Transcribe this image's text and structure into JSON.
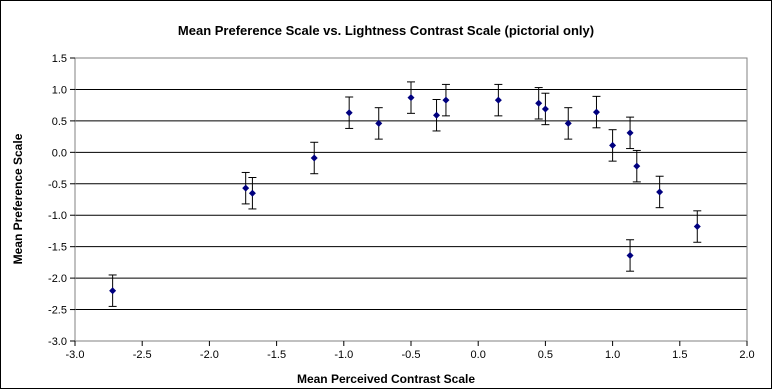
{
  "chart_data": {
    "type": "scatter",
    "title": "Mean Preference Scale vs. Lightness Contrast Scale (pictorial only)",
    "xlabel": "Mean Perceived Contrast Scale",
    "ylabel": "Mean Preference Scale",
    "xlim": [
      -3.0,
      2.0
    ],
    "ylim": [
      -3.0,
      1.5
    ],
    "x_ticks": [
      "-3.0",
      "-2.5",
      "-2.0",
      "-1.5",
      "-1.0",
      "-0.5",
      "0.0",
      "0.5",
      "1.0",
      "1.5",
      "2.0"
    ],
    "y_ticks": [
      "1.5",
      "1.0",
      "0.5",
      "0.0",
      "-0.5",
      "-1.0",
      "-1.5",
      "-2.0",
      "-2.5",
      "-3.0"
    ],
    "grid": "horizontal",
    "legend": "none",
    "marker_color": "#00007f",
    "points": [
      {
        "x": -2.72,
        "y": -2.2,
        "err": 0.25
      },
      {
        "x": -1.73,
        "y": -0.57,
        "err": 0.25
      },
      {
        "x": -1.68,
        "y": -0.65,
        "err": 0.25
      },
      {
        "x": -1.22,
        "y": -0.09,
        "err": 0.25
      },
      {
        "x": -0.96,
        "y": 0.63,
        "err": 0.25
      },
      {
        "x": -0.74,
        "y": 0.46,
        "err": 0.25
      },
      {
        "x": -0.5,
        "y": 0.87,
        "err": 0.25
      },
      {
        "x": -0.31,
        "y": 0.59,
        "err": 0.25
      },
      {
        "x": -0.24,
        "y": 0.83,
        "err": 0.25
      },
      {
        "x": 0.15,
        "y": 0.83,
        "err": 0.25
      },
      {
        "x": 0.45,
        "y": 0.78,
        "err": 0.25
      },
      {
        "x": 0.5,
        "y": 0.69,
        "err": 0.25
      },
      {
        "x": 0.67,
        "y": 0.46,
        "err": 0.25
      },
      {
        "x": 0.88,
        "y": 0.64,
        "err": 0.25
      },
      {
        "x": 1.0,
        "y": 0.11,
        "err": 0.25
      },
      {
        "x": 1.13,
        "y": 0.31,
        "err": 0.25
      },
      {
        "x": 1.18,
        "y": -0.22,
        "err": 0.25
      },
      {
        "x": 1.13,
        "y": -1.64,
        "err": 0.25
      },
      {
        "x": 1.35,
        "y": -0.63,
        "err": 0.25
      },
      {
        "x": 1.63,
        "y": -1.18,
        "err": 0.25
      }
    ]
  }
}
